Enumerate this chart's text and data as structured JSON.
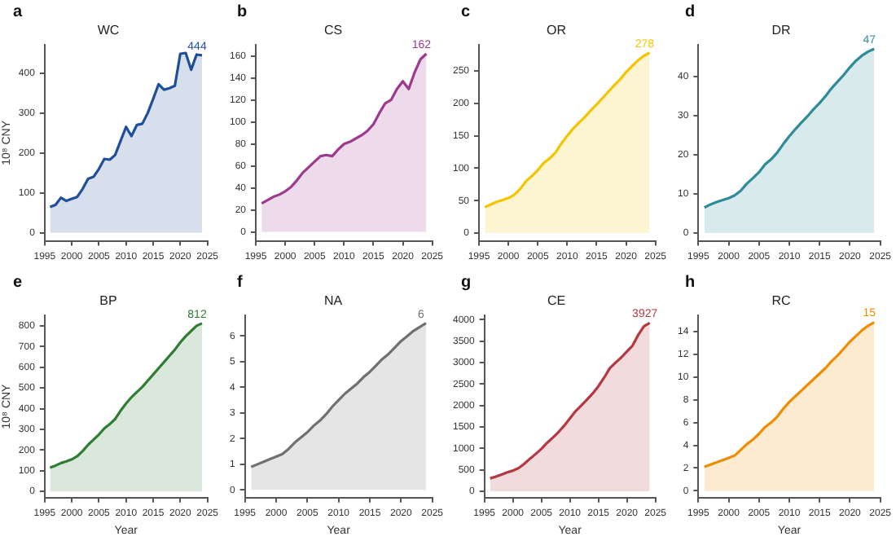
{
  "chart_data": [
    {
      "type": "area",
      "title": "WC",
      "ylabel": "10⁸ CNY",
      "annotations": [
        "a"
      ],
      "x": [
        1996,
        1997,
        1998,
        1999,
        2000,
        2001,
        2002,
        2003,
        2004,
        2005,
        2006,
        2007,
        2008,
        2009,
        2010,
        2011,
        2012,
        2013,
        2014,
        2015,
        2016,
        2017,
        2018,
        2019,
        2020,
        2021,
        2022,
        2023,
        2024
      ],
      "series": [
        {
          "color": "#1f4e9a",
          "values": [
            65,
            70,
            88,
            80,
            85,
            90,
            110,
            135,
            140,
            160,
            185,
            183,
            195,
            230,
            265,
            242,
            270,
            273,
            300,
            335,
            372,
            358,
            362,
            368,
            448,
            450,
            408,
            446,
            444
          ],
          "value_labels": [
            null,
            null,
            null,
            null,
            null,
            null,
            null,
            null,
            null,
            null,
            null,
            null,
            null,
            null,
            null,
            null,
            null,
            null,
            null,
            null,
            null,
            null,
            null,
            null,
            null,
            null,
            null,
            null,
            "444"
          ]
        }
      ],
      "xlim": [
        1995,
        2025
      ],
      "xticks": [
        1995,
        2000,
        2005,
        2010,
        2015,
        2020,
        2025
      ],
      "ylim": [
        -20,
        470
      ],
      "yticks": [
        0,
        100,
        200,
        300,
        400
      ],
      "grid": false,
      "legend": false
    },
    {
      "type": "area",
      "title": "CS",
      "annotations": [
        "b"
      ],
      "x": [
        1996,
        1997,
        1998,
        1999,
        2000,
        2001,
        2002,
        2003,
        2004,
        2005,
        2006,
        2007,
        2008,
        2009,
        2010,
        2011,
        2012,
        2013,
        2014,
        2015,
        2016,
        2017,
        2018,
        2019,
        2020,
        2021,
        2022,
        2023,
        2024
      ],
      "series": [
        {
          "color": "#9b3a8e",
          "values": [
            26,
            29,
            32,
            34,
            37,
            41,
            47,
            54,
            59,
            64,
            69,
            70,
            69,
            75,
            80,
            82,
            85,
            88,
            92,
            98,
            108,
            117,
            120,
            130,
            137,
            130,
            145,
            157,
            162
          ],
          "value_labels": [
            null,
            null,
            null,
            null,
            null,
            null,
            null,
            null,
            null,
            null,
            null,
            null,
            null,
            null,
            null,
            null,
            null,
            null,
            null,
            null,
            null,
            null,
            null,
            null,
            null,
            null,
            null,
            null,
            "162"
          ]
        }
      ],
      "xlim": [
        1995,
        2025
      ],
      "xticks": [
        1995,
        2000,
        2005,
        2010,
        2015,
        2020,
        2025
      ],
      "ylim": [
        -8,
        170
      ],
      "yticks": [
        0,
        20,
        40,
        60,
        80,
        100,
        120,
        140,
        160
      ],
      "grid": false,
      "legend": false
    },
    {
      "type": "area",
      "title": "OR",
      "annotations": [
        "c"
      ],
      "x": [
        1996,
        1997,
        1998,
        1999,
        2000,
        2001,
        2002,
        2003,
        2004,
        2005,
        2006,
        2007,
        2008,
        2009,
        2010,
        2011,
        2012,
        2013,
        2014,
        2015,
        2016,
        2017,
        2018,
        2019,
        2020,
        2021,
        2022,
        2023,
        2024
      ],
      "series": [
        {
          "color": "#f5c400",
          "values": [
            40,
            44,
            48,
            51,
            54,
            59,
            68,
            80,
            88,
            97,
            108,
            115,
            124,
            138,
            150,
            161,
            170,
            179,
            189,
            198,
            208,
            218,
            228,
            237,
            248,
            257,
            266,
            273,
            278
          ],
          "value_labels": [
            null,
            null,
            null,
            null,
            null,
            null,
            null,
            null,
            null,
            null,
            null,
            null,
            null,
            null,
            null,
            null,
            null,
            null,
            null,
            null,
            null,
            null,
            null,
            null,
            null,
            null,
            null,
            null,
            "278"
          ]
        }
      ],
      "xlim": [
        1995,
        2025
      ],
      "xticks": [
        1995,
        2000,
        2005,
        2010,
        2015,
        2020,
        2025
      ],
      "ylim": [
        -12,
        290
      ],
      "yticks": [
        0,
        50,
        100,
        150,
        200,
        250
      ],
      "grid": false,
      "legend": false
    },
    {
      "type": "area",
      "title": "DR",
      "annotations": [
        "d"
      ],
      "x": [
        1996,
        1997,
        1998,
        1999,
        2000,
        2001,
        2002,
        2003,
        2004,
        2005,
        2006,
        2007,
        2008,
        2009,
        2010,
        2011,
        2012,
        2013,
        2014,
        2015,
        2016,
        2017,
        2018,
        2019,
        2020,
        2021,
        2022,
        2023,
        2024
      ],
      "series": [
        {
          "color": "#2e8b99",
          "values": [
            6.5,
            7.3,
            7.9,
            8.4,
            8.9,
            9.6,
            10.8,
            12.6,
            14.0,
            15.5,
            17.5,
            18.8,
            20.5,
            22.7,
            24.7,
            26.5,
            28.2,
            29.8,
            31.6,
            33.2,
            35.0,
            37.0,
            38.7,
            40.4,
            42.3,
            44.0,
            45.3,
            46.3,
            47
          ],
          "value_labels": [
            null,
            null,
            null,
            null,
            null,
            null,
            null,
            null,
            null,
            null,
            null,
            null,
            null,
            null,
            null,
            null,
            null,
            null,
            null,
            null,
            null,
            null,
            null,
            null,
            null,
            null,
            null,
            null,
            "47"
          ]
        }
      ],
      "xlim": [
        1995,
        2025
      ],
      "xticks": [
        1995,
        2000,
        2005,
        2010,
        2015,
        2020,
        2025
      ],
      "ylim": [
        -2,
        48
      ],
      "yticks": [
        0,
        10,
        20,
        30,
        40
      ],
      "grid": false,
      "legend": false
    },
    {
      "type": "area",
      "title": "BP",
      "xlabel": "Year",
      "ylabel": "10⁸ CNY",
      "annotations": [
        "e"
      ],
      "x": [
        1996,
        1997,
        1998,
        1999,
        2000,
        2001,
        2002,
        2003,
        2004,
        2005,
        2006,
        2007,
        2008,
        2009,
        2010,
        2011,
        2012,
        2013,
        2014,
        2015,
        2016,
        2017,
        2018,
        2019,
        2020,
        2021,
        2022,
        2023,
        2024
      ],
      "series": [
        {
          "color": "#2e7d32",
          "values": [
            115,
            125,
            137,
            145,
            155,
            170,
            195,
            225,
            250,
            275,
            305,
            325,
            350,
            390,
            425,
            455,
            480,
            505,
            535,
            565,
            595,
            625,
            655,
            685,
            720,
            750,
            775,
            800,
            812
          ],
          "value_labels": [
            null,
            null,
            null,
            null,
            null,
            null,
            null,
            null,
            null,
            null,
            null,
            null,
            null,
            null,
            null,
            null,
            null,
            null,
            null,
            null,
            null,
            null,
            null,
            null,
            null,
            null,
            null,
            null,
            "812"
          ]
        }
      ],
      "xlim": [
        1995,
        2025
      ],
      "xticks": [
        1995,
        2000,
        2005,
        2010,
        2015,
        2020,
        2025
      ],
      "ylim": [
        -30,
        850
      ],
      "yticks": [
        0,
        100,
        200,
        300,
        400,
        500,
        600,
        700,
        800
      ],
      "grid": false,
      "legend": false
    },
    {
      "type": "area",
      "title": "NA",
      "xlabel": "Year",
      "annotations": [
        "f"
      ],
      "x": [
        1996,
        1997,
        1998,
        1999,
        2000,
        2001,
        2002,
        2003,
        2004,
        2005,
        2006,
        2007,
        2008,
        2009,
        2010,
        2011,
        2012,
        2013,
        2014,
        2015,
        2016,
        2017,
        2018,
        2019,
        2020,
        2021,
        2022,
        2023,
        2024
      ],
      "series": [
        {
          "color": "#707070",
          "values": [
            0.9,
            1.0,
            1.1,
            1.2,
            1.3,
            1.4,
            1.6,
            1.85,
            2.05,
            2.25,
            2.5,
            2.7,
            2.95,
            3.25,
            3.5,
            3.75,
            3.95,
            4.15,
            4.4,
            4.6,
            4.85,
            5.1,
            5.3,
            5.55,
            5.8,
            6.0,
            6.2,
            6.35,
            6.5
          ],
          "value_labels": [
            null,
            null,
            null,
            null,
            null,
            null,
            null,
            null,
            null,
            null,
            null,
            null,
            null,
            null,
            null,
            null,
            null,
            null,
            null,
            null,
            null,
            null,
            null,
            null,
            null,
            null,
            null,
            null,
            "6"
          ]
        }
      ],
      "xlim": [
        1995,
        2025
      ],
      "xticks": [
        1995,
        2000,
        2005,
        2010,
        2015,
        2020,
        2025
      ],
      "ylim": [
        -0.3,
        6.8
      ],
      "yticks": [
        0,
        1,
        2,
        3,
        4,
        5,
        6
      ],
      "grid": false,
      "legend": false
    },
    {
      "type": "area",
      "title": "CE",
      "xlabel": "Year",
      "annotations": [
        "g"
      ],
      "x": [
        1996,
        1997,
        1998,
        1999,
        2000,
        2001,
        2002,
        2003,
        2004,
        2005,
        2006,
        2007,
        2008,
        2009,
        2010,
        2011,
        2012,
        2013,
        2014,
        2015,
        2016,
        2017,
        2018,
        2019,
        2020,
        2021,
        2022,
        2023,
        2024
      ],
      "series": [
        {
          "color": "#b5373f",
          "values": [
            300,
            340,
            390,
            440,
            480,
            540,
            640,
            760,
            870,
            990,
            1130,
            1250,
            1380,
            1530,
            1700,
            1870,
            2000,
            2140,
            2280,
            2450,
            2650,
            2870,
            3000,
            3120,
            3260,
            3400,
            3650,
            3850,
            3927
          ],
          "value_labels": [
            null,
            null,
            null,
            null,
            null,
            null,
            null,
            null,
            null,
            null,
            null,
            null,
            null,
            null,
            null,
            null,
            null,
            null,
            null,
            null,
            null,
            null,
            null,
            null,
            null,
            null,
            null,
            null,
            "3927"
          ]
        }
      ],
      "xlim": [
        1995,
        2025
      ],
      "xticks": [
        1995,
        2000,
        2005,
        2010,
        2015,
        2020,
        2025
      ],
      "ylim": [
        -150,
        4100
      ],
      "yticks": [
        0,
        500,
        1000,
        1500,
        2000,
        2500,
        3000,
        3500,
        4000
      ],
      "grid": false,
      "legend": false
    },
    {
      "type": "area",
      "title": "RC",
      "xlabel": "Year",
      "annotations": [
        "h"
      ],
      "x": [
        1996,
        1997,
        1998,
        1999,
        2000,
        2001,
        2002,
        2003,
        2004,
        2005,
        2006,
        2007,
        2008,
        2009,
        2010,
        2011,
        2012,
        2013,
        2014,
        2015,
        2016,
        2017,
        2018,
        2019,
        2020,
        2021,
        2022,
        2023,
        2024
      ],
      "series": [
        {
          "color": "#f08c00",
          "values": [
            2.1,
            2.3,
            2.5,
            2.7,
            2.9,
            3.1,
            3.6,
            4.1,
            4.5,
            5.0,
            5.6,
            6.0,
            6.5,
            7.2,
            7.8,
            8.3,
            8.8,
            9.3,
            9.8,
            10.3,
            10.8,
            11.4,
            11.9,
            12.5,
            13.1,
            13.6,
            14.1,
            14.5,
            14.8
          ],
          "value_labels": [
            null,
            null,
            null,
            null,
            null,
            null,
            null,
            null,
            null,
            null,
            null,
            null,
            null,
            null,
            null,
            null,
            null,
            null,
            null,
            null,
            null,
            null,
            null,
            null,
            null,
            null,
            null,
            null,
            "15"
          ]
        }
      ],
      "xlim": [
        1995,
        2025
      ],
      "xticks": [
        1995,
        2000,
        2005,
        2010,
        2015,
        2020,
        2025
      ],
      "ylim": [
        -0.6,
        15.4
      ],
      "yticks": [
        0,
        2,
        4,
        6,
        8,
        10,
        12,
        14
      ],
      "grid": false,
      "legend": false
    }
  ]
}
